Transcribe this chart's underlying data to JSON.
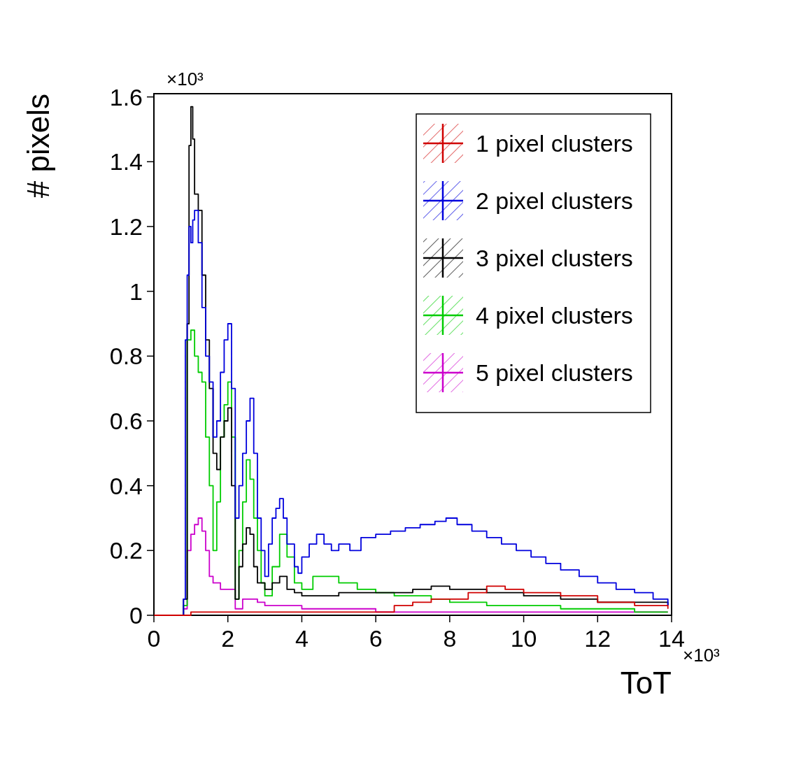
{
  "chart_data": {
    "type": "step",
    "xlabel": "ToT",
    "ylabel": "# pixels",
    "annotations": [
      "×10³",
      "×10³"
    ],
    "xlim": [
      0,
      14
    ],
    "xticks": [
      0,
      2,
      4,
      6,
      8,
      10,
      12,
      14
    ],
    "ylim": [
      0,
      1.61
    ],
    "yticks": [
      0,
      0.2,
      0.4,
      0.6,
      0.8,
      1,
      1.2,
      1.4,
      1.6
    ],
    "legend": "top right",
    "grid": false,
    "series": [
      {
        "name": "1 pixel clusters",
        "color": "#d00000",
        "x": [
          0,
          1.0,
          2.0,
          4.0,
          6.0,
          6.5,
          7.0,
          7.5,
          8.0,
          8.5,
          9.0,
          9.5,
          10.0,
          10.5,
          11.0,
          12.0,
          13.0,
          13.9
        ],
        "values": [
          0,
          0.01,
          0.01,
          0.01,
          0.01,
          0.03,
          0.04,
          0.05,
          0.05,
          0.07,
          0.09,
          0.08,
          0.07,
          0.07,
          0.06,
          0.04,
          0.03,
          0.02
        ]
      },
      {
        "name": "2 pixel clusters",
        "color": "#0000dd",
        "x": [
          0,
          0.8,
          0.85,
          0.9,
          0.95,
          1.0,
          1.05,
          1.1,
          1.2,
          1.3,
          1.4,
          1.5,
          1.6,
          1.7,
          1.8,
          1.9,
          2.0,
          2.1,
          2.2,
          2.3,
          2.4,
          2.5,
          2.6,
          2.7,
          2.8,
          2.9,
          3.0,
          3.1,
          3.2,
          3.3,
          3.4,
          3.5,
          3.6,
          3.8,
          3.9,
          4.0,
          4.2,
          4.4,
          4.6,
          4.8,
          5.0,
          5.3,
          5.6,
          6.0,
          6.4,
          6.8,
          7.2,
          7.6,
          7.9,
          8.2,
          8.6,
          9.0,
          9.4,
          9.8,
          10.2,
          10.6,
          11.0,
          11.5,
          12.0,
          12.5,
          13.0,
          13.5,
          13.9
        ],
        "values": [
          0,
          0.05,
          0.85,
          1.05,
          1.2,
          1.15,
          1.22,
          1.25,
          1.15,
          0.95,
          0.8,
          0.72,
          0.55,
          0.6,
          0.75,
          0.85,
          0.9,
          0.7,
          0.3,
          0.4,
          0.5,
          0.6,
          0.67,
          0.5,
          0.3,
          0.2,
          0.12,
          0.22,
          0.3,
          0.33,
          0.36,
          0.3,
          0.22,
          0.15,
          0.13,
          0.18,
          0.22,
          0.25,
          0.22,
          0.2,
          0.22,
          0.2,
          0.24,
          0.25,
          0.26,
          0.27,
          0.28,
          0.29,
          0.3,
          0.28,
          0.26,
          0.24,
          0.22,
          0.2,
          0.18,
          0.16,
          0.14,
          0.12,
          0.1,
          0.08,
          0.07,
          0.05,
          0.03
        ]
      },
      {
        "name": "3 pixel clusters",
        "color": "#000000",
        "x": [
          0,
          0.8,
          0.9,
          0.95,
          1.0,
          1.05,
          1.1,
          1.2,
          1.3,
          1.4,
          1.5,
          1.6,
          1.7,
          1.8,
          1.9,
          2.0,
          2.1,
          2.2,
          2.3,
          2.4,
          2.5,
          2.6,
          2.7,
          2.8,
          3.0,
          3.2,
          3.4,
          3.6,
          3.8,
          4.0,
          4.5,
          5.0,
          5.5,
          6.0,
          6.5,
          7.0,
          7.5,
          8.0,
          8.5,
          9.0,
          9.5,
          10.0,
          10.5,
          11.0,
          11.5,
          12.0,
          12.5,
          13.0,
          13.5,
          13.9
        ],
        "values": [
          0,
          0.05,
          0.9,
          1.45,
          1.57,
          1.47,
          1.3,
          1.25,
          1.05,
          0.85,
          0.7,
          0.5,
          0.45,
          0.55,
          0.6,
          0.64,
          0.4,
          0.05,
          0.15,
          0.22,
          0.27,
          0.25,
          0.15,
          0.1,
          0.08,
          0.1,
          0.12,
          0.08,
          0.07,
          0.06,
          0.06,
          0.07,
          0.07,
          0.07,
          0.07,
          0.08,
          0.09,
          0.08,
          0.08,
          0.07,
          0.07,
          0.06,
          0.06,
          0.05,
          0.05,
          0.04,
          0.04,
          0.04,
          0.04,
          0.03
        ]
      },
      {
        "name": "4 pixel clusters",
        "color": "#00cc00",
        "x": [
          0,
          0.8,
          0.9,
          1.0,
          1.1,
          1.2,
          1.3,
          1.4,
          1.5,
          1.6,
          1.7,
          1.8,
          1.9,
          2.0,
          2.1,
          2.2,
          2.3,
          2.4,
          2.5,
          2.6,
          2.7,
          2.8,
          2.9,
          3.0,
          3.2,
          3.4,
          3.5,
          3.6,
          3.8,
          4.0,
          4.3,
          4.6,
          5.0,
          5.5,
          6.0,
          6.5,
          7.0,
          7.5,
          8.0,
          9.0,
          10.0,
          11.0,
          12.0,
          13.0,
          13.9
        ],
        "values": [
          0,
          0.03,
          0.85,
          0.88,
          0.8,
          0.75,
          0.72,
          0.55,
          0.4,
          0.2,
          0.35,
          0.55,
          0.65,
          0.72,
          0.55,
          0.05,
          0.2,
          0.35,
          0.48,
          0.42,
          0.3,
          0.2,
          0.1,
          0.06,
          0.15,
          0.25,
          0.25,
          0.18,
          0.1,
          0.08,
          0.12,
          0.12,
          0.1,
          0.08,
          0.07,
          0.06,
          0.06,
          0.05,
          0.04,
          0.03,
          0.03,
          0.02,
          0.02,
          0.01,
          0.01
        ]
      },
      {
        "name": "5 pixel clusters",
        "color": "#cc00cc",
        "x": [
          0,
          0.8,
          0.9,
          1.0,
          1.1,
          1.2,
          1.3,
          1.4,
          1.5,
          1.6,
          1.8,
          2.0,
          2.2,
          2.4,
          2.6,
          2.8,
          3.0,
          3.5,
          4.0,
          5.0,
          6.0,
          8.0,
          10.0,
          12.0,
          13.9
        ],
        "values": [
          0,
          0.02,
          0.2,
          0.25,
          0.28,
          0.3,
          0.26,
          0.2,
          0.12,
          0.1,
          0.08,
          0.08,
          0.02,
          0.05,
          0.05,
          0.04,
          0.03,
          0.03,
          0.02,
          0.02,
          0.01,
          0.01,
          0.01,
          0.01,
          0.01
        ]
      }
    ]
  }
}
